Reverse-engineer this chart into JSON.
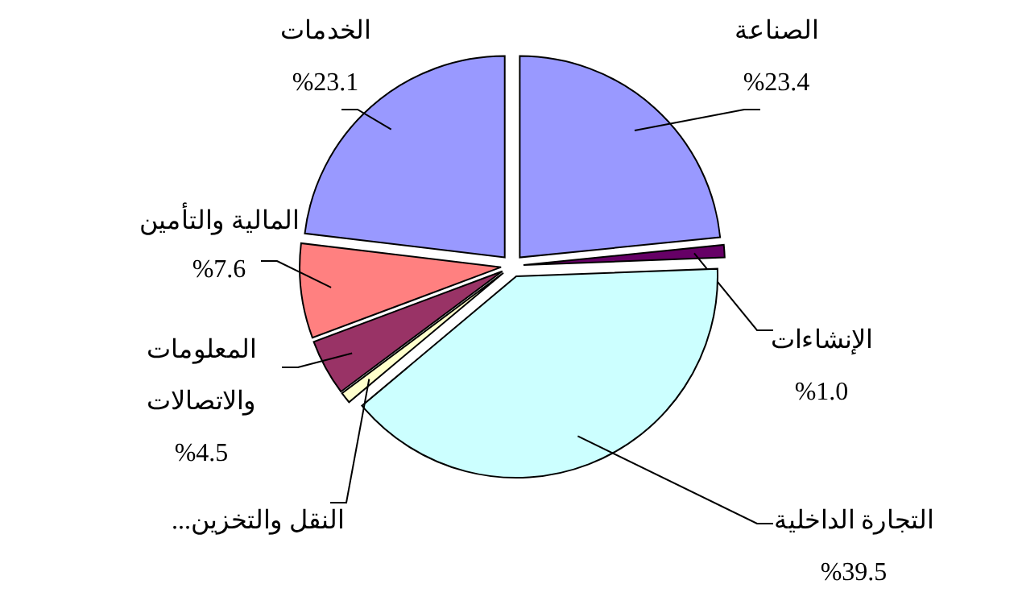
{
  "chart_data": {
    "type": "pie",
    "categories": [
      "الصناعة",
      "الإنشاءات",
      "التجارة الداخلية",
      "النقل والتخزين...",
      "المعلومات\nوالاتصالات",
      "المالية والتأمين",
      "الخدمات"
    ],
    "values": [
      23.4,
      1.0,
      39.5,
      0.9,
      4.5,
      7.6,
      23.1
    ],
    "value_labels": [
      "%23.4",
      "%1.0",
      "%39.5",
      null,
      "%4.5",
      "%7.6",
      "%23.1"
    ],
    "colors": [
      "#9999ff",
      "#660066",
      "#ccffff",
      "#ffffcc",
      "#993366",
      "#ff8080",
      "#9999ff"
    ]
  }
}
